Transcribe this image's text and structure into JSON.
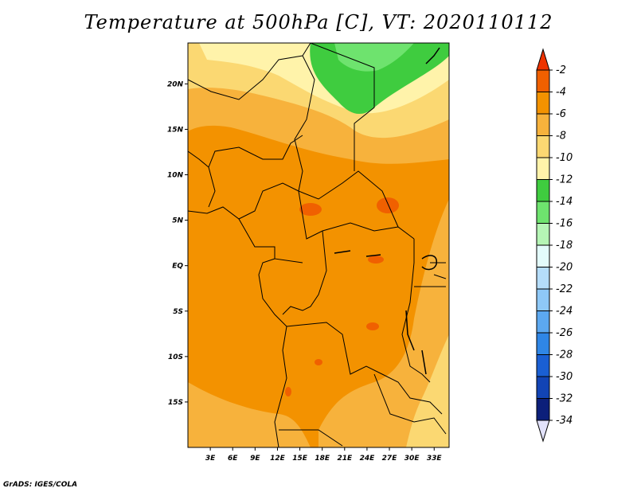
{
  "title": "Temperature at 500hPa [C], VT: 2020110112",
  "credit": "GrADS: IGES/COLA",
  "map": {
    "lon_range": [
      0,
      35
    ],
    "lat_range": [
      -20,
      24.5
    ],
    "x_ticks": [
      {
        "lon": 3,
        "label": "3E"
      },
      {
        "lon": 6,
        "label": "6E"
      },
      {
        "lon": 9,
        "label": "9E"
      },
      {
        "lon": 12,
        "label": "12E"
      },
      {
        "lon": 15,
        "label": "15E"
      },
      {
        "lon": 18,
        "label": "18E"
      },
      {
        "lon": 21,
        "label": "21E"
      },
      {
        "lon": 24,
        "label": "24E"
      },
      {
        "lon": 27,
        "label": "27E"
      },
      {
        "lon": 30,
        "label": "30E"
      },
      {
        "lon": 33,
        "label": "33E"
      }
    ],
    "y_ticks": [
      {
        "lat": 20,
        "label": "20N"
      },
      {
        "lat": 15,
        "label": "15N"
      },
      {
        "lat": 10,
        "label": "10N"
      },
      {
        "lat": 5,
        "label": "5N"
      },
      {
        "lat": 0,
        "label": "EQ"
      },
      {
        "lat": -5,
        "label": "5S"
      },
      {
        "lat": -10,
        "label": "10S"
      },
      {
        "lat": -15,
        "label": "15S"
      }
    ]
  },
  "colorbar": {
    "levels": [
      "-2",
      "-4",
      "-6",
      "-8",
      "-10",
      "-12",
      "-14",
      "-16",
      "-18",
      "-20",
      "-22",
      "-24",
      "-26",
      "-28",
      "-30",
      "-32",
      "-34"
    ],
    "colors": [
      "#ee3300",
      "#f06000",
      "#f39200",
      "#f7b23c",
      "#fbd872",
      "#fff3aa",
      "#3fcc3f",
      "#6ee36e",
      "#b5f5b5",
      "#e3fbfb",
      "#b5ddfa",
      "#8ec8f7",
      "#5ca8f0",
      "#2f86e6",
      "#1a5fd3",
      "#1244b5",
      "#0c1f7a",
      "#e2e2fb"
    ],
    "color_meaning": "top triangle = above -2, then bands between labels downward, bottom triangle = below -34"
  }
}
